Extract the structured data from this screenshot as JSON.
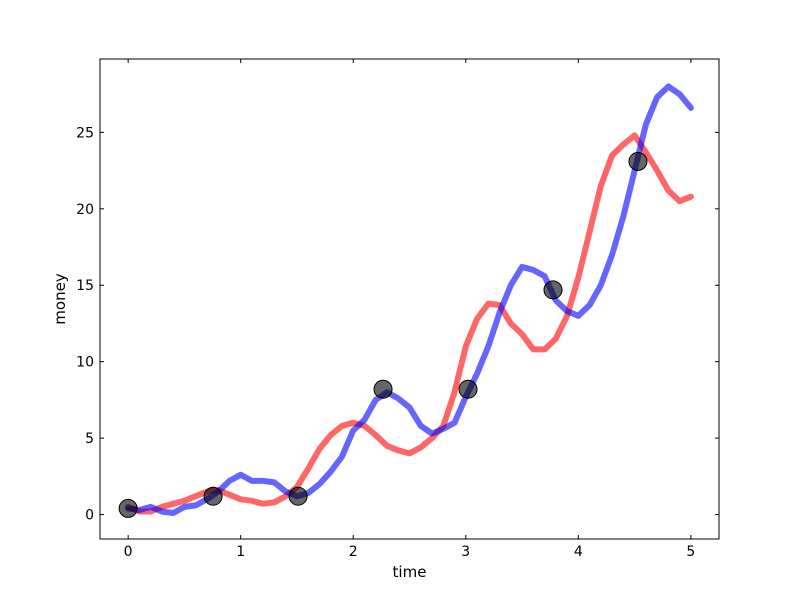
{
  "chart_data": {
    "type": "line",
    "title": "",
    "xlabel": "time",
    "ylabel": "money",
    "xlim": [
      -0.25,
      5.25
    ],
    "ylim": [
      -1.6,
      29.8
    ],
    "xticks": [
      0,
      1,
      2,
      3,
      4,
      5
    ],
    "yticks": [
      0,
      5,
      10,
      15,
      20,
      25
    ],
    "grid": false,
    "colors": {
      "series_red": "#ff0000",
      "series_blue": "#0000ff",
      "markers": "#000000"
    },
    "x": [
      0,
      0.1,
      0.2,
      0.3,
      0.4,
      0.5,
      0.6,
      0.7,
      0.8,
      0.9,
      1.0,
      1.1,
      1.2,
      1.3,
      1.4,
      1.5,
      1.6,
      1.7,
      1.8,
      1.9,
      2.0,
      2.1,
      2.2,
      2.3,
      2.4,
      2.5,
      2.6,
      2.7,
      2.8,
      2.9,
      3.0,
      3.1,
      3.2,
      3.3,
      3.4,
      3.5,
      3.6,
      3.7,
      3.8,
      3.9,
      4.0,
      4.1,
      4.2,
      4.3,
      4.4,
      4.5,
      4.6,
      4.7,
      4.8,
      4.9,
      5.0
    ],
    "series": [
      {
        "color": "#ff0000",
        "values": [
          0.5,
          0.2,
          0.2,
          0.5,
          0.7,
          0.9,
          1.2,
          1.5,
          1.6,
          1.3,
          1.0,
          0.9,
          0.7,
          0.8,
          1.2,
          1.8,
          3.0,
          4.3,
          5.2,
          5.8,
          6.0,
          5.8,
          5.2,
          4.5,
          4.2,
          4.0,
          4.4,
          5.0,
          5.8,
          8.0,
          11.0,
          12.8,
          13.8,
          13.7,
          12.5,
          11.8,
          10.8,
          10.8,
          11.5,
          13.0,
          15.5,
          18.5,
          21.5,
          23.5,
          24.2,
          24.8,
          23.7,
          22.5,
          21.2,
          20.5,
          20.8
        ]
      },
      {
        "color": "#0000ff",
        "values": [
          0.4,
          0.3,
          0.5,
          0.2,
          0.1,
          0.5,
          0.6,
          1.0,
          1.5,
          2.2,
          2.6,
          2.2,
          2.2,
          2.1,
          1.5,
          1.2,
          1.4,
          2.0,
          2.8,
          3.8,
          5.5,
          6.2,
          7.5,
          8.0,
          7.6,
          7.0,
          5.8,
          5.3,
          5.6,
          6.0,
          7.7,
          9.2,
          11.0,
          13.2,
          15.0,
          16.2,
          16.0,
          15.6,
          14.0,
          13.3,
          13.0,
          13.7,
          15.0,
          17.0,
          19.5,
          22.5,
          25.5,
          27.3,
          28.0,
          27.5,
          26.6
        ]
      }
    ],
    "markers": {
      "x": [
        0,
        0.755,
        1.51,
        2.265,
        3.02,
        3.775,
        4.53
      ],
      "y": [
        0.4,
        1.2,
        1.2,
        8.2,
        8.2,
        14.7,
        23.1
      ]
    }
  }
}
